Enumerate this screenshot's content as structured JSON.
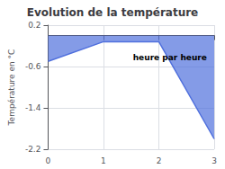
{
  "chart_data": {
    "type": "area",
    "title": "Evolution de la température",
    "ylabel": "Température en °C",
    "x": [
      0,
      1,
      2,
      3
    ],
    "values": [
      -0.5,
      -0.12,
      -0.12,
      -2.0
    ],
    "xlim": [
      0,
      3
    ],
    "ylim": [
      -2.2,
      0.2
    ],
    "xticks": [
      0,
      1,
      2,
      3
    ],
    "yticks": [
      0.2,
      -0.6,
      -1.4,
      -2.2
    ],
    "grid": true,
    "annotations": [
      {
        "text": "heure par heure",
        "x": 2.2,
        "y": -0.35
      }
    ]
  }
}
